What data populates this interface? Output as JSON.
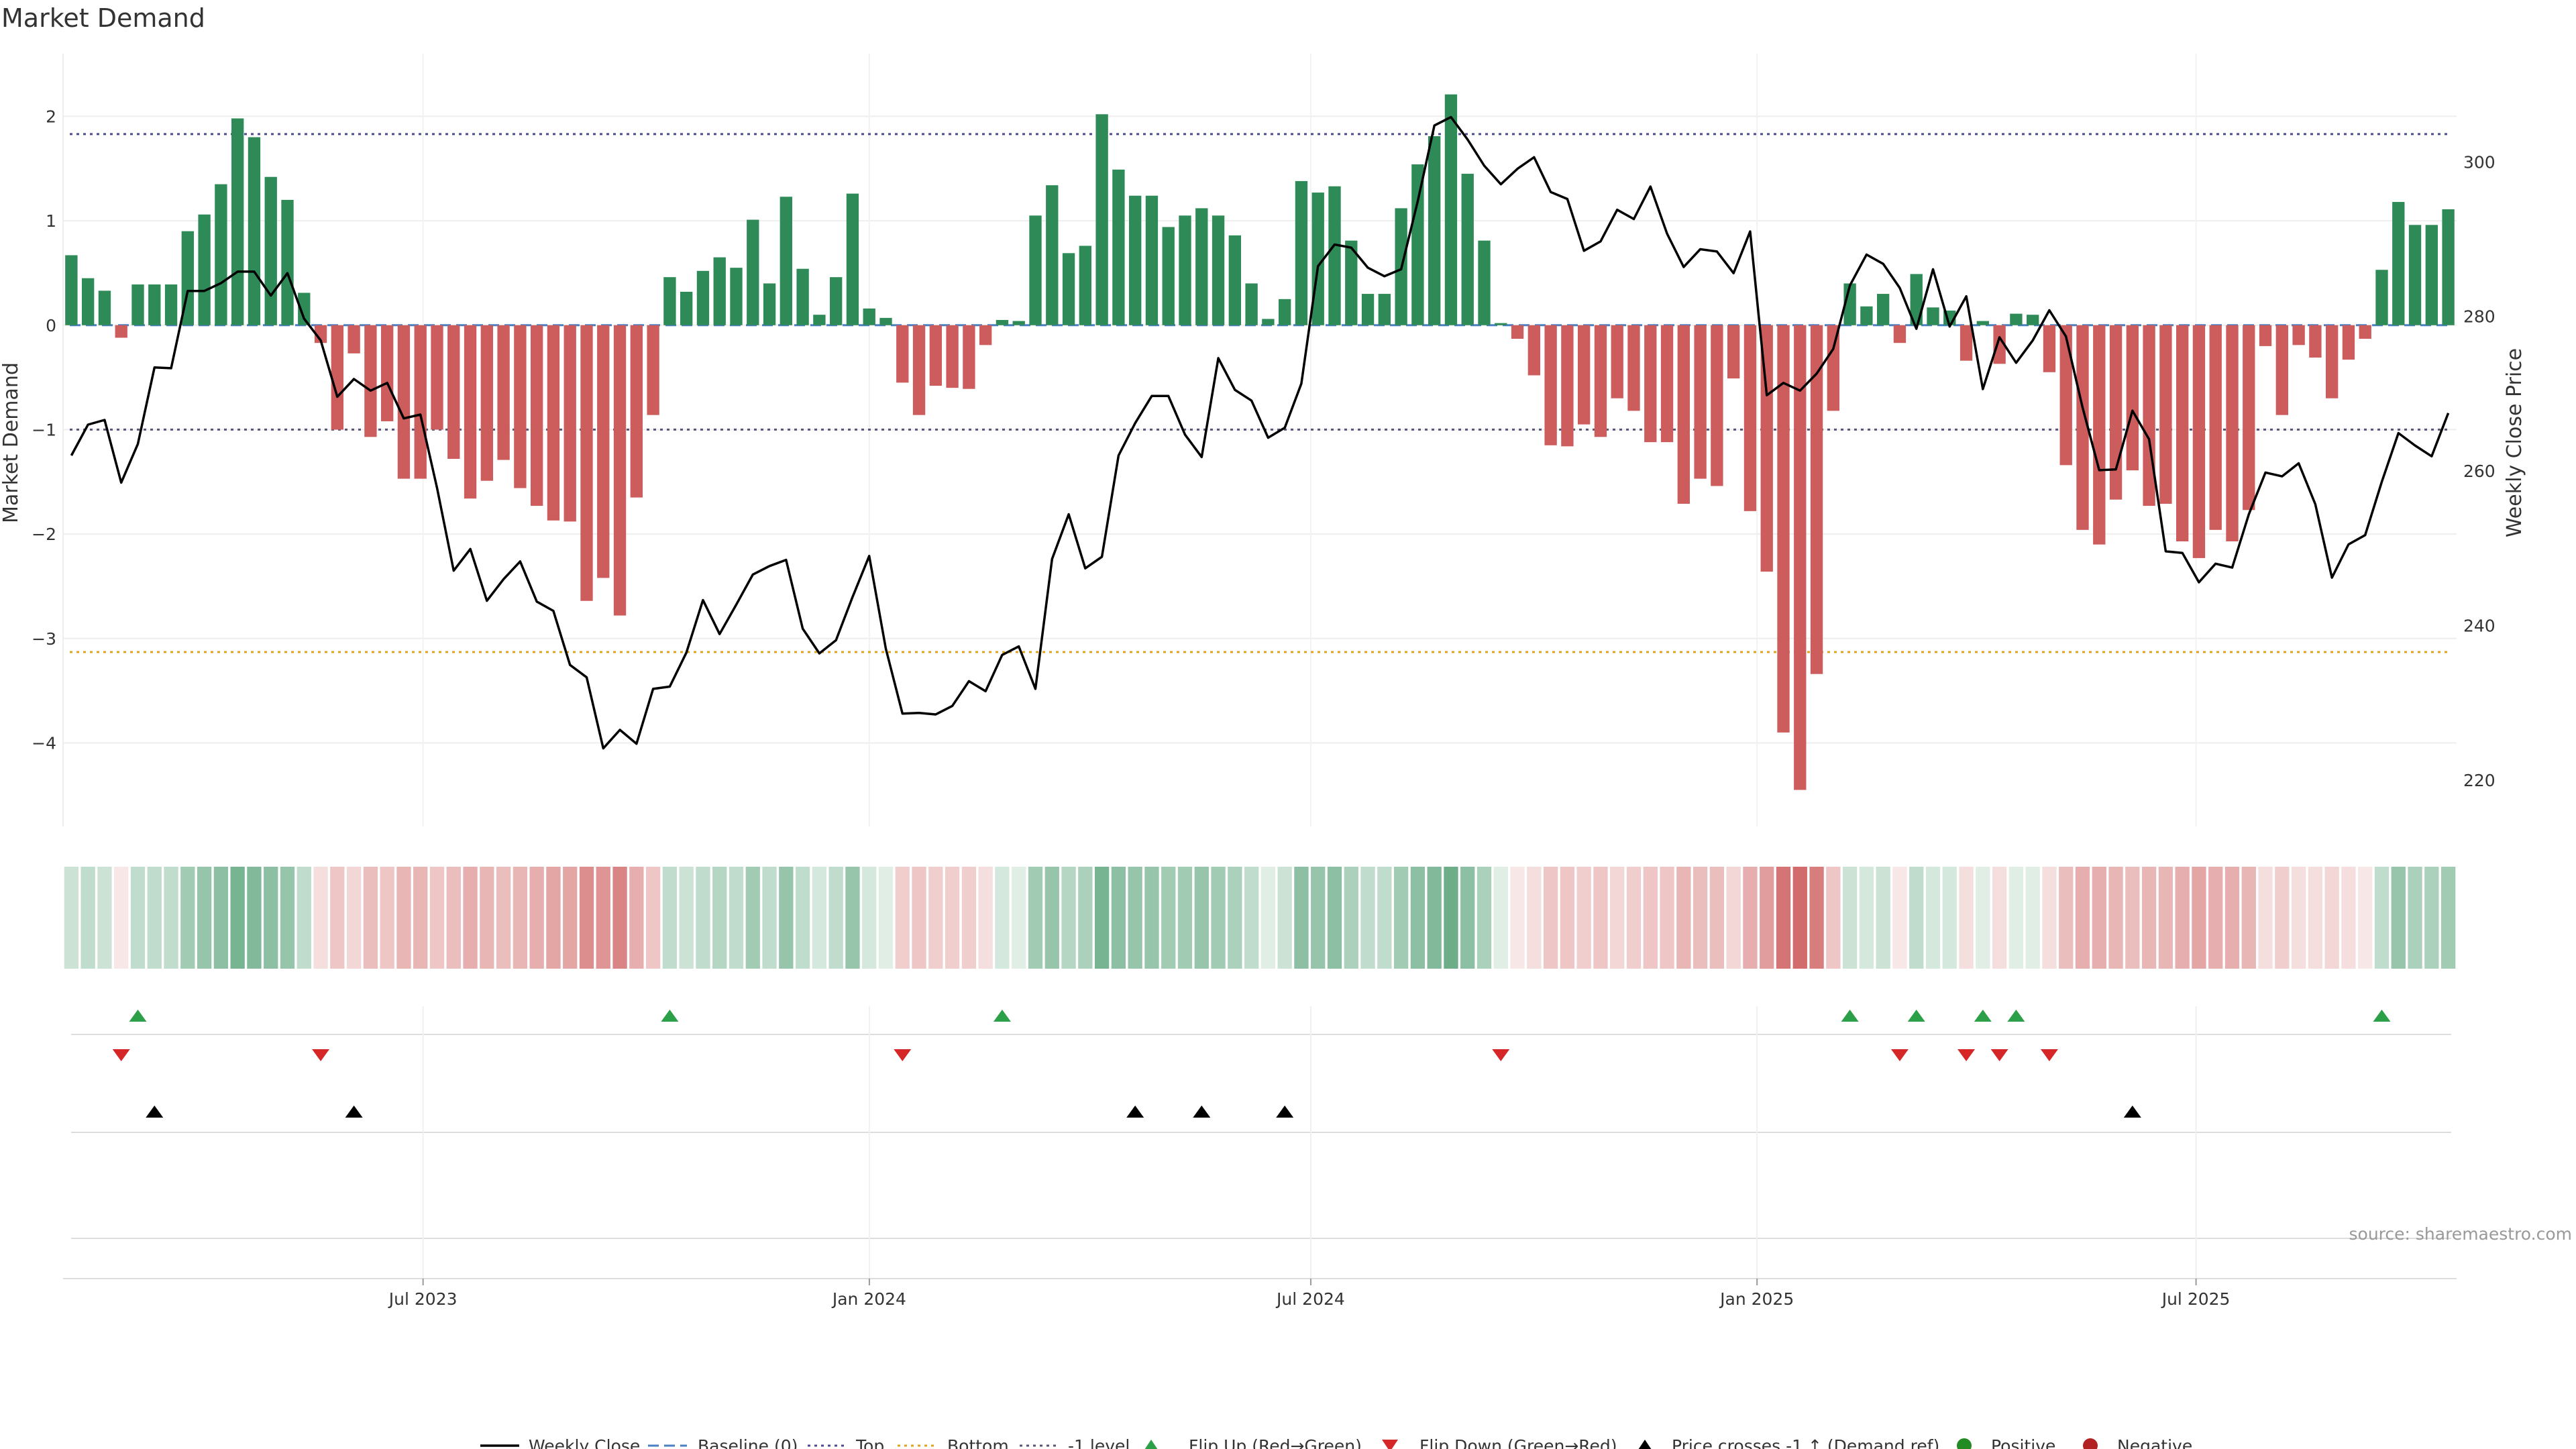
{
  "chart_data": {
    "type": "bar",
    "title": "Market Demand",
    "ylabel": "Market Demand",
    "y2label": "Weekly Close Price",
    "ylim": [
      -4.8,
      2.6
    ],
    "y2lim": [
      214,
      314
    ],
    "yticks": [
      2,
      1,
      0,
      -1,
      -2,
      -3,
      -4
    ],
    "y2ticks": [
      300,
      280,
      260,
      240,
      220
    ],
    "ytick_labels": [
      "2",
      "1",
      "0",
      "−1",
      "−2",
      "−3",
      "−4"
    ],
    "y2tick_labels": [
      "300",
      "280",
      "260",
      "240",
      "220"
    ],
    "x_start": "2023-02-06",
    "x_end": "2025-10-13",
    "xticks": [
      {
        "date": "2023-07-01",
        "label": "Jul 2023"
      },
      {
        "date": "2024-01-01",
        "label": "Jan 2024"
      },
      {
        "date": "2024-07-01",
        "label": "Jul 2024"
      },
      {
        "date": "2025-01-01",
        "label": "Jan 2025"
      },
      {
        "date": "2025-07-01",
        "label": "Jul 2025"
      }
    ],
    "reference_lines": {
      "top": 1.83,
      "minus_one": -1.0,
      "bottom": -3.13,
      "baseline": 0
    },
    "demand": [
      0.67,
      0.45,
      0.33,
      -0.12,
      0.39,
      0.39,
      0.39,
      0.9,
      1.06,
      1.35,
      1.98,
      1.8,
      1.42,
      1.2,
      0.31,
      -0.17,
      -1.0,
      -0.27,
      -1.07,
      -0.92,
      -1.47,
      -1.47,
      -1.0,
      -1.28,
      -1.66,
      -1.49,
      -1.29,
      -1.56,
      -1.73,
      -1.87,
      -1.88,
      -2.64,
      -2.42,
      -2.78,
      -1.65,
      -0.86,
      0.46,
      0.32,
      0.52,
      0.65,
      0.55,
      1.01,
      0.4,
      1.23,
      0.54,
      0.1,
      0.46,
      1.26,
      0.16,
      0.07,
      -0.55,
      -0.86,
      -0.58,
      -0.6,
      -0.61,
      -0.19,
      0.05,
      0.04,
      1.05,
      1.34,
      0.69,
      0.76,
      2.02,
      1.49,
      1.24,
      1.24,
      0.94,
      1.05,
      1.12,
      1.05,
      0.86,
      0.4,
      0.06,
      0.25,
      1.38,
      1.27,
      1.33,
      0.81,
      0.3,
      0.3,
      1.12,
      1.54,
      1.81,
      2.21,
      1.45,
      0.81,
      0.02,
      -0.13,
      -0.48,
      -1.15,
      -1.16,
      -0.95,
      -1.07,
      -0.7,
      -0.82,
      -1.12,
      -1.12,
      -1.71,
      -1.47,
      -1.54,
      -0.51,
      -1.78,
      -2.36,
      -3.9,
      -4.45,
      -3.34,
      -0.82,
      0.4,
      0.18,
      0.3,
      -0.17,
      0.49,
      0.17,
      0.14,
      -0.34,
      0.04,
      -0.37,
      0.11,
      0.1,
      -0.45,
      -1.34,
      -1.96,
      -2.1,
      -1.67,
      -1.39,
      -1.73,
      -1.71,
      -2.07,
      -2.23,
      -1.96,
      -2.07,
      -1.77,
      -0.2,
      -0.86,
      -0.19,
      -0.31,
      -0.7,
      -0.33,
      -0.13,
      0.53,
      1.18,
      0.96,
      0.96,
      1.11
    ],
    "close": [
      262,
      266,
      266.6,
      258.5,
      263.5,
      273.4,
      273.3,
      283.3,
      283.3,
      284.3,
      285.8,
      285.8,
      282.7,
      285.6,
      279.7,
      276.9,
      269.6,
      271.9,
      270.4,
      271.4,
      266.8,
      267.3,
      257.8,
      247.1,
      249.9,
      243.2,
      246,
      248.3,
      243.1,
      241.9,
      234.9,
      233.3,
      224.1,
      226.5,
      224.7,
      231.8,
      232.1,
      236.5,
      243.3,
      238.9,
      242.7,
      246.6,
      247.7,
      248.5,
      239.6,
      236.4,
      238.1,
      243.7,
      249,
      237,
      228.6,
      228.7,
      228.5,
      229.6,
      232.8,
      231.5,
      236.2,
      237.3,
      231.8,
      248.6,
      254.4,
      247.4,
      248.9,
      262,
      266.2,
      269.7,
      269.7,
      264.7,
      261.8,
      274.6,
      270.5,
      269.1,
      264.3,
      265.6,
      271.3,
      286.5,
      289.3,
      288.9,
      286.3,
      285.2,
      286.1,
      294.9,
      304.7,
      305.8,
      302.9,
      299.5,
      297.1,
      299.1,
      300.6,
      296.1,
      295.2,
      288.5,
      289.7,
      293.8,
      292.6,
      296.8,
      290.7,
      286.4,
      288.7,
      288.4,
      285.6,
      291,
      269.8,
      271.4,
      270.4,
      272.6,
      275.8,
      284,
      288,
      286.8,
      283.7,
      278.4,
      286.1,
      278.7,
      282.6,
      270.6,
      277.3,
      274,
      276.9,
      280.8,
      277.4,
      268.2,
      260.1,
      260.2,
      267.8,
      264.1,
      249.6,
      249.4,
      245.6,
      248,
      247.5,
      254.4,
      259.8,
      259.3,
      261,
      255.7,
      246.2,
      250.5,
      251.7,
      258.6,
      264.9,
      263.3,
      261.9,
      267.5
    ],
    "heat": [
      0.25,
      0.3,
      0.25,
      0.15,
      0.3,
      0.3,
      0.3,
      0.45,
      0.5,
      0.55,
      0.65,
      0.6,
      0.55,
      0.5,
      0.3,
      0.2,
      0.35,
      0.25,
      0.4,
      0.35,
      0.45,
      0.45,
      0.35,
      0.4,
      0.5,
      0.45,
      0.4,
      0.45,
      0.5,
      0.55,
      0.55,
      0.7,
      0.65,
      0.75,
      0.5,
      0.35,
      0.3,
      0.25,
      0.3,
      0.35,
      0.3,
      0.45,
      0.3,
      0.5,
      0.3,
      0.2,
      0.3,
      0.5,
      0.2,
      0.15,
      0.3,
      0.35,
      0.3,
      0.3,
      0.3,
      0.2,
      0.2,
      0.15,
      0.45,
      0.5,
      0.35,
      0.4,
      0.65,
      0.55,
      0.5,
      0.5,
      0.45,
      0.45,
      0.5,
      0.45,
      0.4,
      0.3,
      0.15,
      0.25,
      0.55,
      0.5,
      0.55,
      0.4,
      0.3,
      0.3,
      0.45,
      0.55,
      0.6,
      0.7,
      0.55,
      0.4,
      0.15,
      0.15,
      0.2,
      0.35,
      0.35,
      0.3,
      0.35,
      0.25,
      0.3,
      0.35,
      0.35,
      0.45,
      0.4,
      0.4,
      0.25,
      0.5,
      0.6,
      0.85,
      0.9,
      0.8,
      0.35,
      0.25,
      0.2,
      0.25,
      0.15,
      0.3,
      0.2,
      0.2,
      0.2,
      0.15,
      0.2,
      0.15,
      0.15,
      0.2,
      0.4,
      0.5,
      0.5,
      0.45,
      0.4,
      0.45,
      0.45,
      0.5,
      0.55,
      0.5,
      0.5,
      0.45,
      0.2,
      0.3,
      0.2,
      0.2,
      0.25,
      0.2,
      0.15,
      0.3,
      0.5,
      0.4,
      0.4,
      0.45
    ],
    "flip_up": [
      4,
      36,
      56,
      107,
      111,
      115,
      117,
      139
    ],
    "flip_down": [
      3,
      15,
      50,
      86,
      110,
      114,
      116,
      119
    ],
    "price_cross": [
      5,
      17,
      64,
      68,
      73,
      124
    ],
    "colors": {
      "positive": "#2e8b57",
      "negative": "#cd5c5c",
      "close_line": "#000000",
      "baseline": "#4a7fc1",
      "top": "#4b4b8f",
      "bottom": "#daa520",
      "minus_one": "#555577",
      "flip_up": "#2ca048",
      "flip_down": "#d62728",
      "price_cross": "#000000",
      "legend_positive": "#228b22",
      "legend_negative": "#b22222"
    },
    "legend_position": "bottom",
    "legend": {
      "close": "Weekly Close",
      "baseline": "Baseline (0)",
      "top": "Top",
      "bottom": "Bottom",
      "minus_one": "-1 level",
      "flip_up": "Flip Up (Red→Green)",
      "flip_down": "Flip Down (Green→Red)",
      "price_cross": "Price crosses -1 ↑ (Demand ref)",
      "positive": "Positive",
      "negative": "Negative"
    },
    "source": "source: sharemaestro.com"
  }
}
